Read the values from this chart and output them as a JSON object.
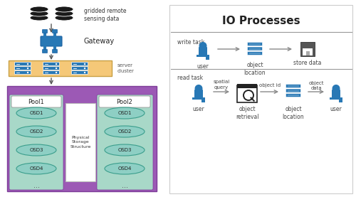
{
  "bg_color": "#ffffff",
  "left_panel": {
    "remote_sensing_label": "gridded remote\nsensing data",
    "gateway_label": "Gateway",
    "server_cluster_label": "server\ncluster",
    "pool1_label": "Pool1",
    "pool2_label": "Pool2",
    "physical_storage_label": "Physical\nStorage\nStructure",
    "osd_labels": [
      "OSD1",
      "OSD2",
      "OSD3",
      "OSD4"
    ],
    "dots": "...",
    "pool_bg": "#9c59b5",
    "pool_column_bg": "#a8d8c8",
    "osd_fill": "#8ecfc4",
    "server_cluster_bg": "#f5c878",
    "server_cluster_border": "#c8a045"
  },
  "right_panel": {
    "title": "IO Processes",
    "write_task_label": "write task",
    "read_task_label": "read task",
    "write_steps": [
      "user",
      "object\nlocation",
      "store data"
    ],
    "read_steps": [
      "user",
      "object\nretrieval",
      "object\nlocation",
      "user"
    ],
    "read_step_labels_above": [
      "spatial\nquery",
      "object id",
      "object\ndata"
    ],
    "title_color": "#222222",
    "label_color": "#444444",
    "icon_color": "#2878b5",
    "divider_color": "#999999"
  }
}
